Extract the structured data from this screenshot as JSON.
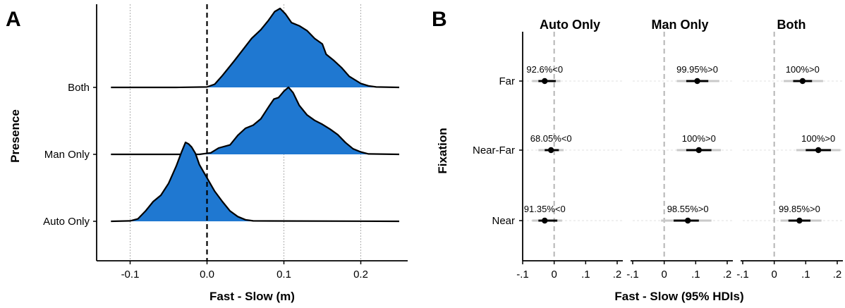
{
  "chart_data": [
    {
      "panel": "A",
      "type": "ridgeline",
      "xlabel": "Fast - Slow (m)",
      "ylabel": "Presence",
      "xlim": [
        -0.125,
        0.25
      ],
      "x_ticks": [
        -0.1,
        0.0,
        0.1,
        0.2
      ],
      "x_tick_labels": [
        "-0.1",
        "0.0",
        "0.1",
        "0.2"
      ],
      "reference_line": 0,
      "fill_color": "#1f78d1",
      "series": [
        {
          "name": "Both",
          "x": [
            -0.125,
            -0.04,
            0.0,
            0.01,
            0.02,
            0.035,
            0.05,
            0.058,
            0.07,
            0.08,
            0.088,
            0.095,
            0.102,
            0.11,
            0.12,
            0.13,
            0.14,
            0.15,
            0.155,
            0.165,
            0.175,
            0.185,
            0.2,
            0.21,
            0.22,
            0.25
          ],
          "height": [
            0.0,
            0.0,
            0.005,
            0.04,
            0.15,
            0.33,
            0.52,
            0.62,
            0.73,
            0.85,
            0.96,
            1.0,
            0.93,
            0.82,
            0.78,
            0.72,
            0.62,
            0.55,
            0.42,
            0.34,
            0.25,
            0.14,
            0.05,
            0.02,
            0.005,
            0.0
          ]
        },
        {
          "name": "Man Only",
          "x": [
            -0.125,
            -0.01,
            0.005,
            0.015,
            0.03,
            0.04,
            0.05,
            0.06,
            0.07,
            0.08,
            0.087,
            0.093,
            0.1,
            0.106,
            0.112,
            0.12,
            0.13,
            0.14,
            0.15,
            0.16,
            0.17,
            0.18,
            0.19,
            0.2,
            0.21,
            0.25
          ],
          "height": [
            0.0,
            0.0,
            0.02,
            0.08,
            0.12,
            0.24,
            0.33,
            0.37,
            0.45,
            0.6,
            0.7,
            0.72,
            0.8,
            0.85,
            0.78,
            0.62,
            0.5,
            0.43,
            0.38,
            0.32,
            0.25,
            0.15,
            0.07,
            0.03,
            0.005,
            0.0
          ]
        },
        {
          "name": "Auto Only",
          "x": [
            -0.125,
            -0.1,
            -0.09,
            -0.08,
            -0.07,
            -0.06,
            -0.05,
            -0.04,
            -0.033,
            -0.028,
            -0.024,
            -0.02,
            -0.015,
            -0.01,
            0.0,
            0.01,
            0.02,
            0.03,
            0.04,
            0.05,
            0.06,
            0.25
          ],
          "height": [
            0.0,
            0.005,
            0.03,
            0.13,
            0.25,
            0.33,
            0.48,
            0.7,
            0.88,
            1.0,
            0.98,
            0.94,
            0.86,
            0.72,
            0.55,
            0.38,
            0.25,
            0.13,
            0.06,
            0.02,
            0.005,
            0.0
          ]
        }
      ]
    },
    {
      "panel": "B",
      "type": "interval",
      "xlabel": "Fast - Slow (95% HDIs)",
      "ylabel": "Fixation",
      "xlim": [
        -0.1,
        0.2
      ],
      "x_ticks": [
        -0.1,
        0.0,
        0.1,
        0.2
      ],
      "x_tick_labels": [
        "-.1",
        "0",
        ".1",
        ".2"
      ],
      "reference_line": 0,
      "categories": [
        "Far",
        "Near-Far",
        "Near"
      ],
      "facets": [
        {
          "name": "Auto Only",
          "points": [
            {
              "category": "Far",
              "median": -0.03,
              "hdi95": [
                -0.07,
                0.02
              ],
              "hdi66": [
                -0.05,
                0.005
              ],
              "label": "92.6%<0"
            },
            {
              "category": "Near-Far",
              "median": -0.01,
              "hdi95": [
                -0.05,
                0.03
              ],
              "hdi66": [
                -0.03,
                0.015
              ],
              "label": "68.05%<0"
            },
            {
              "category": "Near",
              "median": -0.03,
              "hdi95": [
                -0.07,
                0.025
              ],
              "hdi66": [
                -0.05,
                0.01
              ],
              "label": "91.35%<0"
            }
          ]
        },
        {
          "name": "Man Only",
          "points": [
            {
              "category": "Far",
              "median": 0.105,
              "hdi95": [
                0.04,
                0.175
              ],
              "hdi66": [
                0.07,
                0.14
              ],
              "label": "99.95%>0"
            },
            {
              "category": "Near-Far",
              "median": 0.11,
              "hdi95": [
                0.04,
                0.18
              ],
              "hdi66": [
                0.07,
                0.15
              ],
              "label": "100%>0"
            },
            {
              "category": "Near",
              "median": 0.075,
              "hdi95": [
                -0.01,
                0.15
              ],
              "hdi66": [
                0.03,
                0.11
              ],
              "label": "98.55%>0"
            }
          ]
        },
        {
          "name": "Both",
          "points": [
            {
              "category": "Far",
              "median": 0.09,
              "hdi95": [
                0.03,
                0.155
              ],
              "hdi66": [
                0.06,
                0.12
              ],
              "label": "100%>0"
            },
            {
              "category": "Near-Far",
              "median": 0.14,
              "hdi95": [
                0.07,
                0.21
              ],
              "hdi66": [
                0.1,
                0.18
              ],
              "label": "100%>0"
            },
            {
              "category": "Near",
              "median": 0.08,
              "hdi95": [
                0.02,
                0.15
              ],
              "hdi66": [
                0.045,
                0.115
              ],
              "label": "99.85%>0"
            }
          ]
        }
      ]
    }
  ],
  "panel_letters": [
    "A",
    "B"
  ]
}
